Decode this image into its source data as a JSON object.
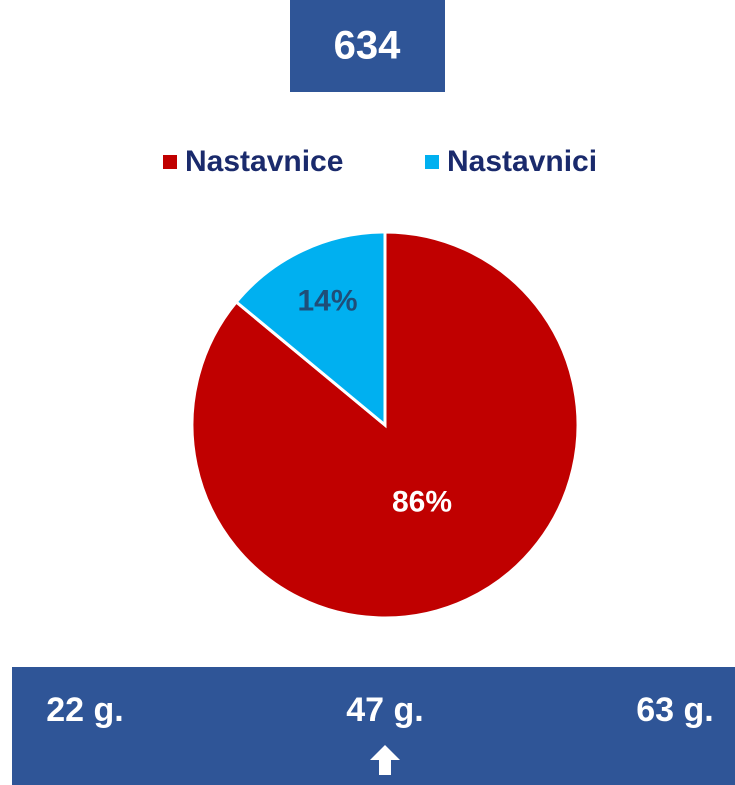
{
  "header": {
    "total": "634"
  },
  "chart_data": {
    "type": "pie",
    "categories": [
      "Nastavnice",
      "Nastavnici"
    ],
    "values": [
      86,
      14
    ],
    "value_labels": [
      "86%",
      "14%"
    ],
    "colors": [
      "#c00000",
      "#00b0f0"
    ],
    "legend": "top"
  },
  "age_bar": {
    "min": "22 g.",
    "avg": "47 g.",
    "max": "63 g."
  }
}
